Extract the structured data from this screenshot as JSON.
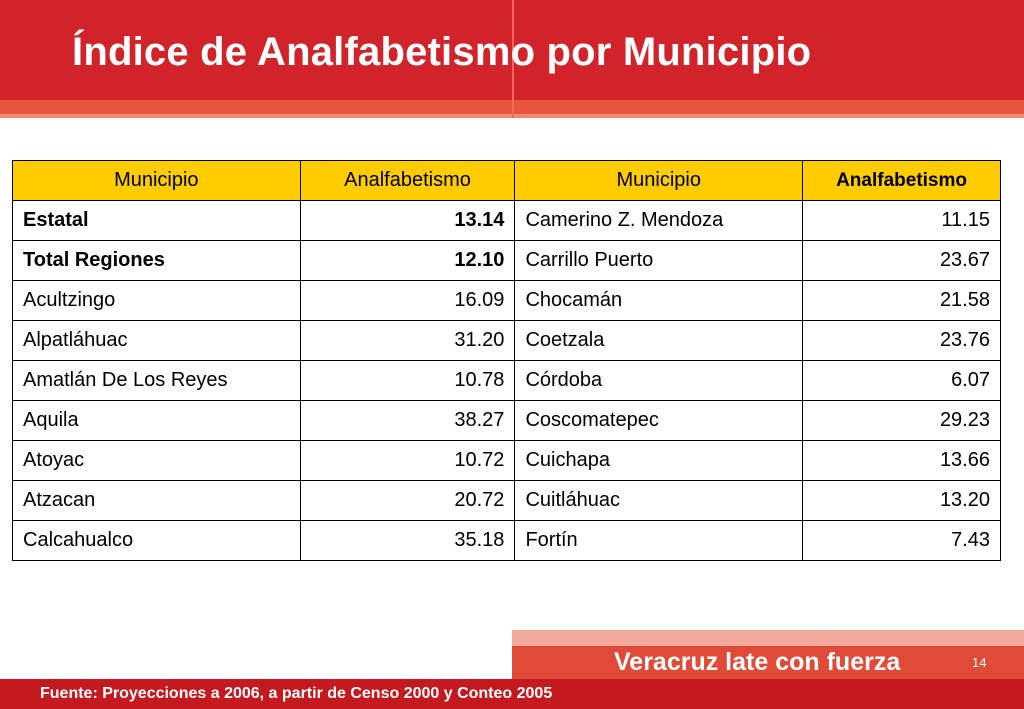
{
  "title": "Índice de Analfabetismo por Municipio",
  "table": {
    "headers": [
      "Municipio",
      "Analfabetismo",
      "Municipio",
      "Analfabetismo"
    ],
    "rows": [
      {
        "m1": "Estatal",
        "v1": "13.14",
        "m2": "Camerino Z. Mendoza",
        "v2": "11.15"
      },
      {
        "m1": "Total Regiones",
        "v1": "12.10",
        "m2": "Carrillo Puerto",
        "v2": "23.67"
      },
      {
        "m1": "Acultzingo",
        "v1": "16.09",
        "m2": "Chocamán",
        "v2": "21.58"
      },
      {
        "m1": "Alpatláhuac",
        "v1": "31.20",
        "m2": "Coetzala",
        "v2": "23.76"
      },
      {
        "m1": "Amatlán De Los Reyes",
        "v1": "10.78",
        "m2": "Córdoba",
        "v2": "6.07"
      },
      {
        "m1": "Aquila",
        "v1": "38.27",
        "m2": "Coscomatepec",
        "v2": "29.23"
      },
      {
        "m1": "Atoyac",
        "v1": "10.72",
        "m2": "Cuichapa",
        "v2": "13.66"
      },
      {
        "m1": "Atzacan",
        "v1": "20.72",
        "m2": "Cuitláhuac",
        "v2": "13.20"
      },
      {
        "m1": "Calcahualco",
        "v1": "35.18",
        "m2": "Fortín",
        "v2": "7.43"
      }
    ]
  },
  "footer": {
    "brand": "Veracruz late con fuerza",
    "page_number": "14",
    "source": "Fuente: Proyecciones a 2006, a partir de Censo 2000 y Conteo 2005"
  },
  "colors": {
    "header_red": "#d2232a",
    "table_header_yellow": "#ffcc00",
    "footer_red": "#e04b38"
  }
}
